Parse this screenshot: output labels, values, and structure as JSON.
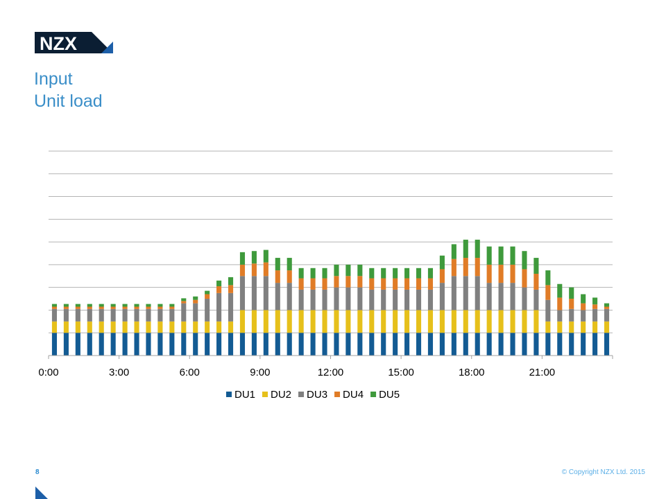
{
  "header": {
    "logo_text": "NZX",
    "title": "Input",
    "subtitle": "Unit load"
  },
  "footer": {
    "page_number": "8",
    "copyright": "© Copyright NZX Ltd. 2015"
  },
  "colors": {
    "brand_navy": "#0b1e33",
    "brand_blue": "#1d5fa8",
    "title_blue": "#3a8ec8",
    "DU1": "#135b93",
    "DU2": "#e6c01b",
    "DU3": "#808080",
    "DU4": "#e07c27",
    "DU5": "#3f9a3c"
  },
  "chart_data": {
    "type": "bar",
    "stacked": true,
    "title": "",
    "xlabel": "",
    "ylabel": "",
    "y_axis_labels_shown": false,
    "ylim": [
      0,
      9
    ],
    "gridlines": [
      1,
      2,
      3,
      4,
      5,
      6,
      7,
      8,
      9
    ],
    "grid": true,
    "legend_position": "bottom",
    "x_tick_labels": [
      "0:00",
      "3:00",
      "6:00",
      "9:00",
      "12:00",
      "15:00",
      "18:00",
      "21:00"
    ],
    "x_tick_every": 6,
    "categories": [
      "0:00",
      "0:30",
      "1:00",
      "1:30",
      "2:00",
      "2:30",
      "3:00",
      "3:30",
      "4:00",
      "4:30",
      "5:00",
      "5:30",
      "6:00",
      "6:30",
      "7:00",
      "7:30",
      "8:00",
      "8:30",
      "9:00",
      "9:30",
      "10:00",
      "10:30",
      "11:00",
      "11:30",
      "12:00",
      "12:30",
      "13:00",
      "13:30",
      "14:00",
      "14:30",
      "15:00",
      "15:30",
      "16:00",
      "16:30",
      "17:00",
      "17:30",
      "18:00",
      "18:30",
      "19:00",
      "19:30",
      "20:00",
      "20:30",
      "21:00",
      "21:30",
      "22:00",
      "22:30",
      "23:00",
      "23:30"
    ],
    "series": [
      {
        "name": "DU1",
        "values": [
          1,
          1,
          1,
          1,
          1,
          1,
          1,
          1,
          1,
          1,
          1,
          1,
          1,
          1,
          1,
          1,
          1,
          1,
          1,
          1,
          1,
          1,
          1,
          1,
          1,
          1,
          1,
          1,
          1,
          1,
          1,
          1,
          1,
          1,
          1,
          1,
          1,
          1,
          1,
          1,
          1,
          1,
          1,
          1,
          1,
          1,
          1,
          1
        ]
      },
      {
        "name": "DU2",
        "values": [
          0.5,
          0.5,
          0.5,
          0.5,
          0.5,
          0.5,
          0.5,
          0.5,
          0.5,
          0.5,
          0.5,
          0.5,
          0.5,
          0.5,
          0.5,
          0.5,
          1,
          1,
          1,
          1,
          1,
          1,
          1,
          1,
          1,
          1,
          1,
          1,
          1,
          1,
          1,
          1,
          1,
          1,
          1,
          1,
          1,
          1,
          1,
          1,
          1,
          1,
          0.5,
          0.5,
          0.5,
          0.5,
          0.5,
          0.5
        ]
      },
      {
        "name": "DU3",
        "values": [
          0.55,
          0.55,
          0.55,
          0.55,
          0.55,
          0.55,
          0.55,
          0.55,
          0.55,
          0.55,
          0.55,
          0.8,
          0.8,
          1,
          1.25,
          1.25,
          1.5,
          1.5,
          1.5,
          1.2,
          1.2,
          0.9,
          0.9,
          0.9,
          1,
          1,
          1,
          0.9,
          0.9,
          0.9,
          0.9,
          0.9,
          0.9,
          1.2,
          1.5,
          1.5,
          1.5,
          1.2,
          1.2,
          1.2,
          1,
          0.9,
          0.95,
          0.5,
          0.55,
          0.5,
          0.55,
          0.55
        ]
      },
      {
        "name": "DU4",
        "values": [
          0.1,
          0.1,
          0.1,
          0.1,
          0.1,
          0.1,
          0.1,
          0.1,
          0.1,
          0.1,
          0.1,
          0.1,
          0.15,
          0.2,
          0.3,
          0.35,
          0.5,
          0.55,
          0.6,
          0.55,
          0.55,
          0.5,
          0.5,
          0.5,
          0.5,
          0.5,
          0.5,
          0.5,
          0.5,
          0.5,
          0.5,
          0.5,
          0.5,
          0.6,
          0.75,
          0.8,
          0.8,
          0.8,
          0.8,
          0.8,
          0.8,
          0.7,
          0.65,
          0.55,
          0.45,
          0.3,
          0.2,
          0.1
        ]
      },
      {
        "name": "DU5",
        "values": [
          0.12,
          0.12,
          0.12,
          0.12,
          0.12,
          0.12,
          0.12,
          0.12,
          0.12,
          0.12,
          0.12,
          0.12,
          0.15,
          0.15,
          0.25,
          0.35,
          0.55,
          0.55,
          0.55,
          0.55,
          0.55,
          0.45,
          0.45,
          0.45,
          0.5,
          0.5,
          0.5,
          0.45,
          0.45,
          0.45,
          0.45,
          0.45,
          0.45,
          0.6,
          0.65,
          0.8,
          0.8,
          0.8,
          0.8,
          0.8,
          0.8,
          0.7,
          0.65,
          0.6,
          0.5,
          0.4,
          0.3,
          0.15
        ]
      }
    ]
  }
}
